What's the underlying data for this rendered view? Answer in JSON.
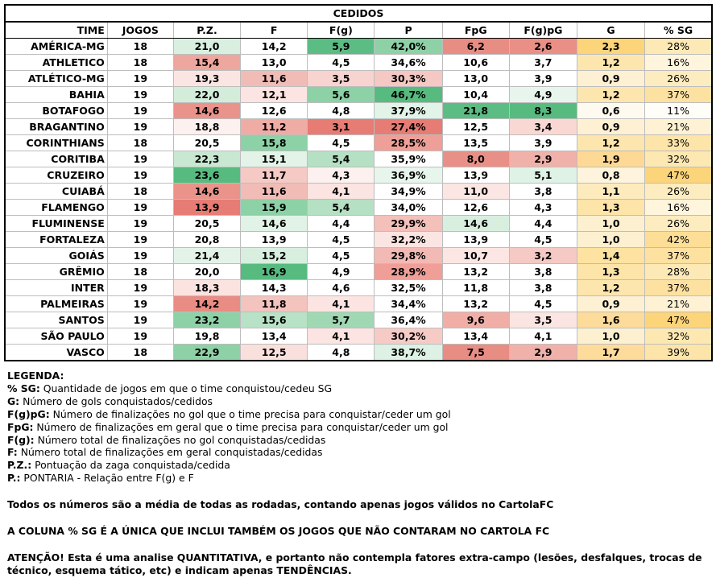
{
  "table": {
    "title": "CEDIDOS",
    "headers": [
      "TIME",
      "JOGOS",
      "P.Z.",
      "F",
      "F(g)",
      "P",
      "FpG",
      "F(g)pG",
      "G",
      "% SG"
    ],
    "rows": [
      [
        "AMÉRICA-MG",
        "18",
        "21,0",
        "14,2",
        "5,9",
        "42,0%",
        "6,2",
        "2,6",
        "2,3",
        "28%"
      ],
      [
        "ATHLETICO",
        "18",
        "15,4",
        "13,0",
        "4,5",
        "34,6%",
        "10,6",
        "3,7",
        "1,2",
        "16%"
      ],
      [
        "ATLÉTICO-MG",
        "19",
        "19,3",
        "11,6",
        "3,5",
        "30,3%",
        "13,0",
        "3,9",
        "0,9",
        "26%"
      ],
      [
        "BAHIA",
        "19",
        "22,0",
        "12,1",
        "5,6",
        "46,7%",
        "10,4",
        "4,9",
        "1,2",
        "37%"
      ],
      [
        "BOTAFOGO",
        "19",
        "14,6",
        "12,6",
        "4,8",
        "37,9%",
        "21,8",
        "8,3",
        "0,6",
        "11%"
      ],
      [
        "BRAGANTINO",
        "19",
        "18,8",
        "11,2",
        "3,1",
        "27,4%",
        "12,5",
        "3,4",
        "0,9",
        "21%"
      ],
      [
        "CORINTHIANS",
        "18",
        "20,5",
        "15,8",
        "4,5",
        "28,5%",
        "13,5",
        "3,9",
        "1,2",
        "33%"
      ],
      [
        "CORITIBA",
        "19",
        "22,3",
        "15,1",
        "5,4",
        "35,9%",
        "8,0",
        "2,9",
        "1,9",
        "32%"
      ],
      [
        "CRUZEIRO",
        "19",
        "23,6",
        "11,7",
        "4,3",
        "36,9%",
        "13,9",
        "5,1",
        "0,8",
        "47%"
      ],
      [
        "CUIABÁ",
        "18",
        "14,6",
        "11,6",
        "4,1",
        "34,9%",
        "11,0",
        "3,8",
        "1,1",
        "26%"
      ],
      [
        "FLAMENGO",
        "19",
        "13,9",
        "15,9",
        "5,4",
        "34,0%",
        "12,6",
        "4,3",
        "1,3",
        "16%"
      ],
      [
        "FLUMINENSE",
        "19",
        "20,5",
        "14,6",
        "4,4",
        "29,9%",
        "14,6",
        "4,4",
        "1,0",
        "26%"
      ],
      [
        "FORTALEZA",
        "19",
        "20,8",
        "13,9",
        "4,5",
        "32,2%",
        "13,9",
        "4,5",
        "1,0",
        "42%"
      ],
      [
        "GOIÁS",
        "19",
        "21,4",
        "15,2",
        "4,5",
        "29,8%",
        "10,7",
        "3,2",
        "1,4",
        "37%"
      ],
      [
        "GRÊMIO",
        "18",
        "20,0",
        "16,9",
        "4,9",
        "28,9%",
        "13,2",
        "3,8",
        "1,3",
        "28%"
      ],
      [
        "INTER",
        "19",
        "18,3",
        "14,3",
        "4,6",
        "32,5%",
        "11,8",
        "3,8",
        "1,2",
        "37%"
      ],
      [
        "PALMEIRAS",
        "19",
        "14,2",
        "11,8",
        "4,1",
        "34,4%",
        "13,2",
        "4,5",
        "0,9",
        "21%"
      ],
      [
        "SANTOS",
        "19",
        "23,2",
        "15,6",
        "5,7",
        "36,4%",
        "9,6",
        "3,5",
        "1,6",
        "47%"
      ],
      [
        "SÃO PAULO",
        "19",
        "19,8",
        "13,4",
        "4,1",
        "30,2%",
        "13,4",
        "4,1",
        "1,0",
        "32%"
      ],
      [
        "VASCO",
        "18",
        "22,9",
        "12,5",
        "4,8",
        "38,7%",
        "7,5",
        "2,9",
        "1,7",
        "39%"
      ]
    ],
    "cell_colors": [
      [
        "#ffffff",
        "#ffffff",
        "#d9efe0",
        "#ffffff",
        "#5cbd84",
        "#8ed1a7",
        "#e88d84",
        "#e98f86",
        "#fcd47a",
        "#fde9b6"
      ],
      [
        "#ffffff",
        "#ffffff",
        "#eea79f",
        "#ffffff",
        "#ffffff",
        "#ffffff",
        "#ffffff",
        "#ffffff",
        "#fde6ad",
        "#fef5dc"
      ],
      [
        "#ffffff",
        "#ffffff",
        "#fbe5e3",
        "#f2bcb6",
        "#f7d4d0",
        "#f5c8c3",
        "#ffffff",
        "#ffffff",
        "#fef1d3",
        "#fdecbf"
      ],
      [
        "#ffffff",
        "#ffffff",
        "#d3edda",
        "#fbe4e1",
        "#8dd1a6",
        "#57bb80",
        "#ffffff",
        "#e7f5ec",
        "#fde6ad",
        "#fde1a0"
      ],
      [
        "#ffffff",
        "#ffffff",
        "#ea938b",
        "#ffffff",
        "#ffffff",
        "#e2f3e8",
        "#5cbd84",
        "#57bb80",
        "#fffaf0",
        "#fffdf7"
      ],
      [
        "#ffffff",
        "#ffffff",
        "#fdf1ef",
        "#efaca5",
        "#e67c73",
        "#e67c73",
        "#ffffff",
        "#f9d8d4",
        "#fef1d3",
        "#fef1d4"
      ],
      [
        "#ffffff",
        "#ffffff",
        "#ffffff",
        "#8dd1a6",
        "#ffffff",
        "#ee9f97",
        "#ffffff",
        "#ffffff",
        "#fde6ad",
        "#fde5a9"
      ],
      [
        "#ffffff",
        "#ffffff",
        "#c8e8d1",
        "#e3f3e8",
        "#b5e0c3",
        "#ffffff",
        "#e89088",
        "#f0b1aa",
        "#fdd995",
        "#fde8b2"
      ],
      [
        "#ffffff",
        "#ffffff",
        "#57bb80",
        "#f5c9c4",
        "#fdf1ef",
        "#e8f5ec",
        "#ffffff",
        "#dff2e6",
        "#fef4dd",
        "#fcd47a"
      ],
      [
        "#ffffff",
        "#ffffff",
        "#ea938b",
        "#f2bcb6",
        "#fbe4e1",
        "#ffffff",
        "#fbe6e3",
        "#ffffff",
        "#fdebbd",
        "#fdecbf"
      ],
      [
        "#ffffff",
        "#ffffff",
        "#e67c73",
        "#8dd1a6",
        "#b5e0c3",
        "#ffffff",
        "#ffffff",
        "#ffffff",
        "#fde4a8",
        "#fef5dc"
      ],
      [
        "#ffffff",
        "#ffffff",
        "#ffffff",
        "#e1f2e6",
        "#ffffff",
        "#f3c0ba",
        "#d8efdf",
        "#ffffff",
        "#fdf0d0",
        "#fdecbf"
      ],
      [
        "#ffffff",
        "#ffffff",
        "#ffffff",
        "#ffffff",
        "#ffffff",
        "#fbe5e2",
        "#ffffff",
        "#ffffff",
        "#fdf0d0",
        "#fdde97"
      ],
      [
        "#ffffff",
        "#ffffff",
        "#e3f3e8",
        "#d8efdf",
        "#ffffff",
        "#f2bab4",
        "#fbe6e3",
        "#f5c9c4",
        "#fde2a2",
        "#fde1a0"
      ],
      [
        "#ffffff",
        "#ffffff",
        "#ffffff",
        "#57bb80",
        "#ffffff",
        "#ef9f98",
        "#ffffff",
        "#ffffff",
        "#fde4a8",
        "#fde9b6"
      ],
      [
        "#ffffff",
        "#ffffff",
        "#fbe3e0",
        "#ffffff",
        "#ffffff",
        "#ffffff",
        "#ffffff",
        "#ffffff",
        "#fde6ad",
        "#fde1a0"
      ],
      [
        "#ffffff",
        "#ffffff",
        "#e98c83",
        "#f3c3be",
        "#fbe4e1",
        "#ffffff",
        "#ffffff",
        "#ffffff",
        "#fef1d3",
        "#fef1d4"
      ],
      [
        "#ffffff",
        "#ffffff",
        "#8ed1a7",
        "#b8e2c5",
        "#a0d8b3",
        "#ffffff",
        "#f0aea7",
        "#fbe5e2",
        "#fddc9b",
        "#fcd47a"
      ],
      [
        "#ffffff",
        "#ffffff",
        "#ffffff",
        "#ffffff",
        "#fbe4e1",
        "#f6cbc6",
        "#ffffff",
        "#ffffff",
        "#fdf0d0",
        "#fde8b2"
      ],
      [
        "#ffffff",
        "#ffffff",
        "#8ed1a7",
        "#fae0dd",
        "#ffffff",
        "#ddf1e4",
        "#e88d84",
        "#f0b1aa",
        "#fddc9b",
        "#fde5a9"
      ]
    ]
  },
  "legend": {
    "title": "LEGENDA:",
    "items": [
      {
        "term": "% SG:",
        "desc": " Quantidade de jogos em que o time conquistou/cedeu SG"
      },
      {
        "term": "G:",
        "desc": " Número de gols conquistados/cedidos"
      },
      {
        "term": "F(g)pG:",
        "desc": " Número de finalizações no gol que o time precisa para conquistar/ceder um gol"
      },
      {
        "term": "FpG:",
        "desc": " Número de finalizações em geral que o time precisa para conquistar/ceder um gol"
      },
      {
        "term": "F(g):",
        "desc": " Número total de finalizações no gol conquistadas/cedidas"
      },
      {
        "term": "F:",
        "desc": " Número total de finalizações em geral conquistadas/cedidas"
      },
      {
        "term": "P.Z.:",
        "desc": " Pontuação da zaga conquistada/cedida"
      },
      {
        "term": "P.:",
        "desc": " PONTARIA - Relação entre F(g) e F"
      }
    ],
    "note1": "Todos os números são a média de todas as rodadas, contando apenas jogos válidos no CartolaFC",
    "note2": "A COLUNA % SG É A ÚNICA QUE INCLUI TAMBÉM OS JOGOS QUE NÃO CONTARAM NO CARTOLA FC",
    "note3": "ATENÇÃO! Esta é uma analise QUANTITATIVA, e portanto não contempla fatores extra-campo (lesões, desfalques, trocas de técnico, esquema tático, etc) e indicam apenas TENDÊNCIAS."
  }
}
